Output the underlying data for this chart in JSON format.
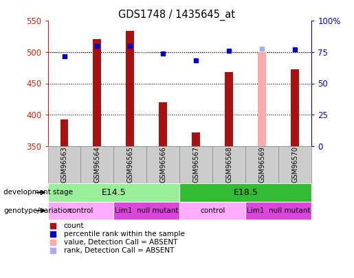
{
  "title": "GDS1748 / 1435645_at",
  "samples": [
    "GSM96563",
    "GSM96564",
    "GSM96565",
    "GSM96566",
    "GSM96567",
    "GSM96568",
    "GSM96569",
    "GSM96570"
  ],
  "bar_values": [
    392,
    521,
    534,
    420,
    371,
    468,
    500,
    473
  ],
  "bar_colors": [
    "#aa1111",
    "#aa1111",
    "#aa1111",
    "#aa1111",
    "#aa1111",
    "#aa1111",
    "#ffaaaa",
    "#aa1111"
  ],
  "dot_values": [
    493,
    510,
    510,
    498,
    487,
    502,
    505,
    504
  ],
  "dot_colors": [
    "#0000cc",
    "#0000cc",
    "#0000cc",
    "#0000cc",
    "#0000cc",
    "#0000cc",
    "#aaaaff",
    "#0000cc"
  ],
  "ylim_left": [
    350,
    550
  ],
  "ylim_right": [
    0,
    100
  ],
  "yticks_left": [
    350,
    400,
    450,
    500,
    550
  ],
  "yticks_right": [
    0,
    25,
    50,
    75,
    100
  ],
  "ytick_right_labels": [
    "0",
    "25",
    "50",
    "75",
    "100%"
  ],
  "ylabel_left_color": "#cc2200",
  "ylabel_right_color": "#0000bb",
  "dev_stage_groups": [
    {
      "label": "E14.5",
      "start": 0,
      "end": 3,
      "color": "#99ee99"
    },
    {
      "label": "E18.5",
      "start": 4,
      "end": 7,
      "color": "#33bb33"
    }
  ],
  "geno_groups": [
    {
      "label": "control",
      "start": 0,
      "end": 1,
      "color": "#ffaaff"
    },
    {
      "label": "Lim1  null mutant",
      "start": 2,
      "end": 3,
      "color": "#dd44dd"
    },
    {
      "label": "control",
      "start": 4,
      "end": 5,
      "color": "#ffaaff"
    },
    {
      "label": "Lim1  null mutant",
      "start": 6,
      "end": 7,
      "color": "#dd44dd"
    }
  ],
  "legend_items": [
    {
      "label": "count",
      "color": "#aa1111"
    },
    {
      "label": "percentile rank within the sample",
      "color": "#0000cc"
    },
    {
      "label": "value, Detection Call = ABSENT",
      "color": "#ffaaaa"
    },
    {
      "label": "rank, Detection Call = ABSENT",
      "color": "#aaaaff"
    }
  ],
  "sample_label_bg": "#cccccc",
  "plot_bg": "#ffffff",
  "border_color": "#888888",
  "bar_width": 0.25
}
